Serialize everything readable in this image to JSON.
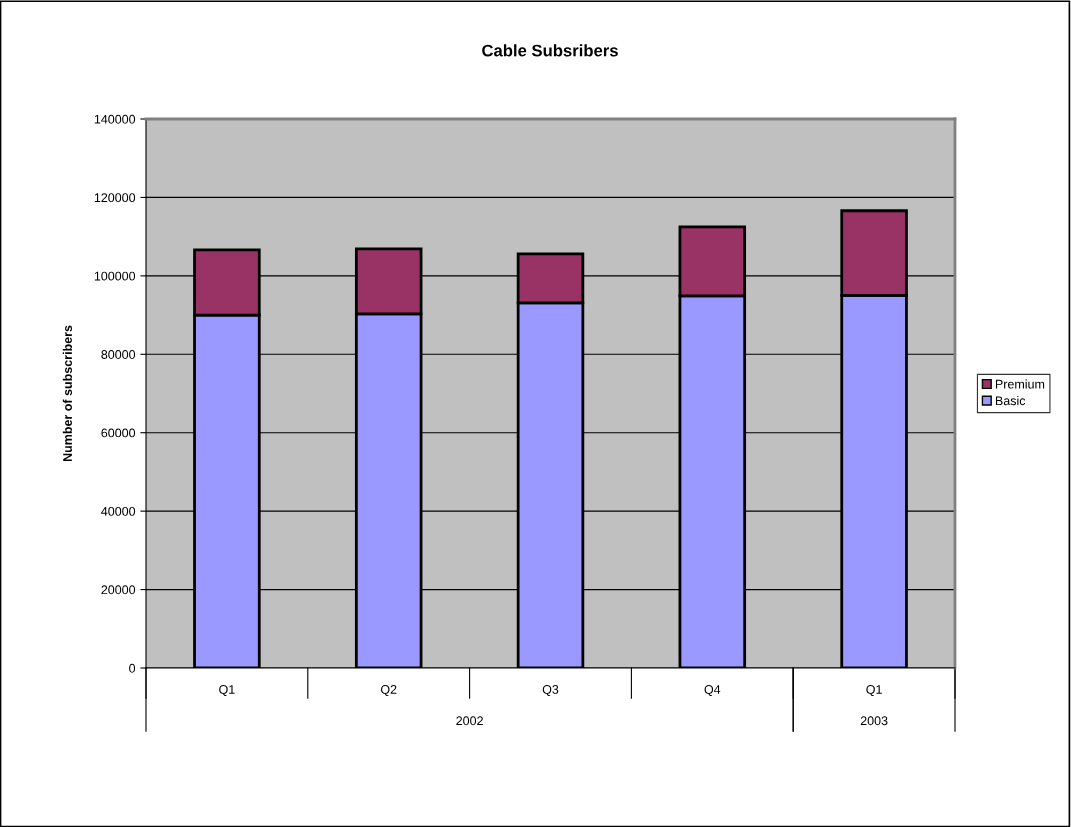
{
  "chart_data": {
    "type": "bar",
    "title": "Cable Subsribers",
    "ylabel": "Number of subscribers",
    "categories": [
      "Q1",
      "Q2",
      "Q3",
      "Q4",
      "Q1"
    ],
    "series": [
      {
        "name": "Basic",
        "color": "#9999ff",
        "values": [
          90000,
          90300,
          93100,
          94900,
          95000
        ]
      },
      {
        "name": "Premium",
        "color": "#993366",
        "values": [
          16600,
          16600,
          12500,
          17600,
          21600
        ]
      }
    ],
    "stacked": true,
    "ylim": [
      0,
      140000
    ],
    "yticks": [
      0,
      20000,
      40000,
      60000,
      80000,
      100000,
      120000,
      140000
    ],
    "grid": "y",
    "legend": "right",
    "annotations": [
      "2002",
      "2003"
    ]
  }
}
